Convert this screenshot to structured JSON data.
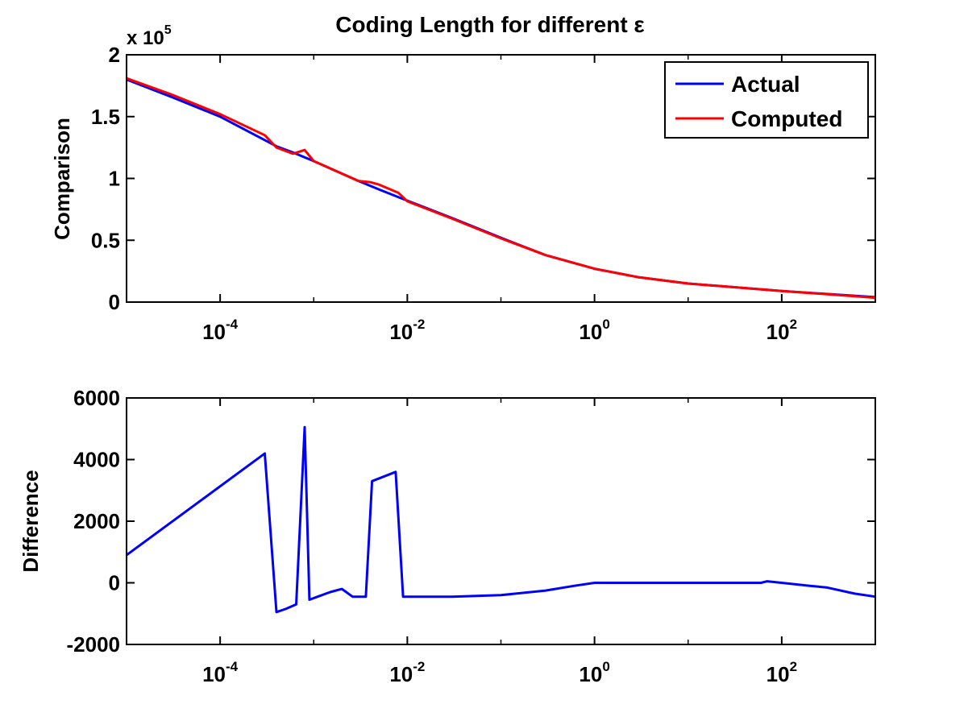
{
  "figure": {
    "title": "Coding Length for different ε"
  },
  "chart_data": [
    {
      "type": "line",
      "xscale": "log",
      "xlim": [
        1e-05,
        1000
      ],
      "ylim": [
        0,
        200000
      ],
      "ylabel": "Comparison",
      "y_exponent_label": {
        "base": "x 10",
        "exp": "5"
      },
      "x_ticks": [
        {
          "value": 0.0001,
          "base": "10",
          "exp": "-4"
        },
        {
          "value": 0.01,
          "base": "10",
          "exp": "-2"
        },
        {
          "value": 1,
          "base": "10",
          "exp": "0"
        },
        {
          "value": 100,
          "base": "10",
          "exp": "2"
        }
      ],
      "y_ticks": [
        {
          "value": 0,
          "label": "0"
        },
        {
          "value": 50000,
          "label": "0.5"
        },
        {
          "value": 100000,
          "label": "1"
        },
        {
          "value": 150000,
          "label": "1.5"
        },
        {
          "value": 200000,
          "label": "2"
        }
      ],
      "legend": {
        "position": "top-right",
        "entries": [
          "Actual",
          "Computed"
        ]
      },
      "series": [
        {
          "name": "Actual",
          "color": "#0000ff",
          "points": [
            [
              1e-05,
              180000
            ],
            [
              3e-05,
              166000
            ],
            [
              0.0001,
              150000
            ],
            [
              0.0003,
              131000
            ],
            [
              0.0004,
              126000
            ],
            [
              0.0006,
              121000
            ],
            [
              0.001,
              114000
            ],
            [
              0.003,
              98000
            ],
            [
              0.005,
              91000
            ],
            [
              0.01,
              82000
            ],
            [
              0.03,
              68000
            ],
            [
              0.1,
              52000
            ],
            [
              0.3,
              38000
            ],
            [
              1,
              27000
            ],
            [
              3,
              20000
            ],
            [
              10,
              15000
            ],
            [
              100,
              9000
            ],
            [
              1000,
              4000
            ]
          ]
        },
        {
          "name": "Computed",
          "color": "#ff0000",
          "points": [
            [
              1e-05,
              181000
            ],
            [
              3e-05,
              168000
            ],
            [
              0.0001,
              152000
            ],
            [
              0.0003,
              135000
            ],
            [
              0.0004,
              125000
            ],
            [
              0.0006,
              120000
            ],
            [
              0.0008,
              123000
            ],
            [
              0.001,
              114000
            ],
            [
              0.003,
              98000
            ],
            [
              0.004,
              97000
            ],
            [
              0.005,
              95000
            ],
            [
              0.008,
              88500
            ],
            [
              0.01,
              81500
            ],
            [
              0.03,
              67500
            ],
            [
              0.1,
              51500
            ],
            [
              0.3,
              38000
            ],
            [
              1,
              27000
            ],
            [
              3,
              20000
            ],
            [
              10,
              15000
            ],
            [
              100,
              9000
            ],
            [
              1000,
              3500
            ]
          ]
        }
      ]
    },
    {
      "type": "line",
      "xscale": "log",
      "xlim": [
        1e-05,
        1000
      ],
      "ylim": [
        -2000,
        6000
      ],
      "ylabel": "Difference",
      "x_ticks": [
        {
          "value": 0.0001,
          "base": "10",
          "exp": "-4"
        },
        {
          "value": 0.01,
          "base": "10",
          "exp": "-2"
        },
        {
          "value": 1,
          "base": "10",
          "exp": "0"
        },
        {
          "value": 100,
          "base": "10",
          "exp": "2"
        }
      ],
      "y_ticks": [
        {
          "value": -2000,
          "label": "-2000"
        },
        {
          "value": 0,
          "label": "0"
        },
        {
          "value": 2000,
          "label": "2000"
        },
        {
          "value": 4000,
          "label": "4000"
        },
        {
          "value": 6000,
          "label": "6000"
        }
      ],
      "series": [
        {
          "color": "#0000ff",
          "points": [
            [
              1e-05,
              900
            ],
            [
              0.0003,
              4200
            ],
            [
              0.0004,
              -950
            ],
            [
              0.0005,
              -850
            ],
            [
              0.00065,
              -700
            ],
            [
              0.0008,
              5050
            ],
            [
              0.0009,
              -550
            ],
            [
              0.0011,
              -450
            ],
            [
              0.0015,
              -300
            ],
            [
              0.002,
              -200
            ],
            [
              0.0026,
              -450
            ],
            [
              0.0036,
              -450
            ],
            [
              0.0042,
              3300
            ],
            [
              0.0075,
              3600
            ],
            [
              0.009,
              -450
            ],
            [
              0.03,
              -450
            ],
            [
              0.1,
              -400
            ],
            [
              0.3,
              -250
            ],
            [
              0.6,
              -100
            ],
            [
              1,
              0
            ],
            [
              10,
              0
            ],
            [
              60,
              0
            ],
            [
              70,
              50
            ],
            [
              100,
              0
            ],
            [
              200,
              -100
            ],
            [
              300,
              -150
            ],
            [
              600,
              -350
            ],
            [
              1000,
              -450
            ]
          ]
        }
      ]
    }
  ]
}
